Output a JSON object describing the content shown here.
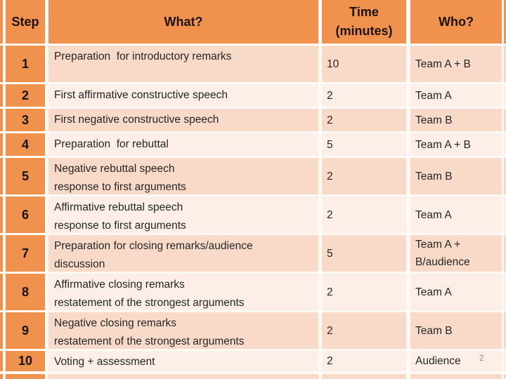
{
  "slide": {
    "page_number": "2"
  },
  "colors": {
    "accent_orange": "#F0914D",
    "band_dark": "#F9DAC8",
    "band_light": "#FDEFE8",
    "gridline": "#FFFAF6",
    "header_text": "#1E1307",
    "body_text": "#262626",
    "page_number_gray": "#8E8E8E"
  },
  "table": {
    "headers": {
      "step": "Step",
      "what": "What?",
      "time": "Time\n(minutes)",
      "who": "Who?"
    },
    "rows": [
      {
        "step": "1",
        "what": "Preparation  for introductory remarks",
        "time": "10",
        "who": "Team A + B"
      },
      {
        "step": "2",
        "what": "First affirmative constructive speech",
        "time": "2",
        "who": "Team A"
      },
      {
        "step": "3",
        "what": "First negative constructive speech",
        "time": "2",
        "who": "Team B"
      },
      {
        "step": "4",
        "what": "Preparation  for rebuttal",
        "time": "5",
        "who": "Team A + B"
      },
      {
        "step": "5",
        "what": "Negative rebuttal speech\nresponse to first arguments",
        "time": "2",
        "who": "Team B"
      },
      {
        "step": "6",
        "what": "Affirmative rebuttal speech\nresponse to first arguments",
        "time": "2",
        "who": "Team A"
      },
      {
        "step": "7",
        "what": "Preparation for closing remarks/audience\ndiscussion",
        "time": "5",
        "who": "Team A +\nB/audience"
      },
      {
        "step": "8",
        "what": "Affirmative closing remarks\nrestatement of the strongest arguments",
        "time": "2",
        "who": "Team A"
      },
      {
        "step": "9",
        "what": "Negative closing remarks\nrestatement of the strongest arguments",
        "time": "2",
        "who": "Team B"
      },
      {
        "step": "10",
        "what": "Voting + assessment",
        "time": "2",
        "who": "Audience"
      }
    ]
  }
}
